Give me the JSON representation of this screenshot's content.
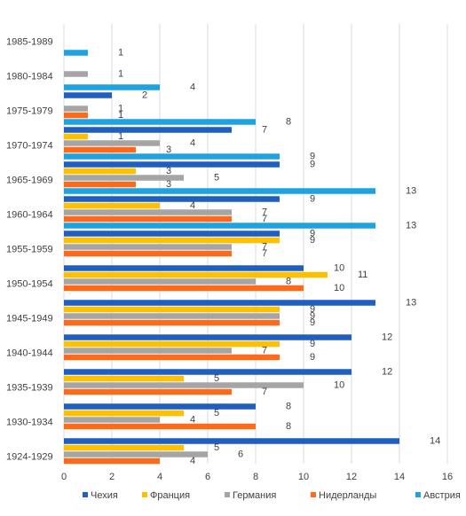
{
  "chart_data": {
    "type": "bar",
    "orientation": "horizontal",
    "categories": [
      "1924-1929",
      "1930-1934",
      "1935-1939",
      "1940-1944",
      "1945-1949",
      "1950-1954",
      "1955-1959",
      "1960-1964",
      "1965-1969",
      "1970-1974",
      "1975-1979",
      "1980-1984",
      "1985-1989"
    ],
    "series": [
      {
        "name": "Чехия",
        "color": "#1f5fbf",
        "values": [
          14,
          8,
          12,
          12,
          13,
          10,
          9,
          9,
          9,
          7,
          2,
          null,
          null
        ]
      },
      {
        "name": "Франция",
        "color": "#ffc000",
        "values": [
          5,
          5,
          5,
          9,
          9,
          11,
          9,
          4,
          3,
          1,
          null,
          null,
          null
        ]
      },
      {
        "name": "Германия",
        "color": "#a5a5a5",
        "values": [
          6,
          4,
          10,
          7,
          9,
          8,
          7,
          7,
          5,
          4,
          1,
          1,
          null
        ]
      },
      {
        "name": "Нидерланды",
        "color": "#ff6a1a",
        "values": [
          4,
          8,
          7,
          9,
          9,
          10,
          7,
          7,
          3,
          3,
          1,
          null,
          null
        ]
      },
      {
        "name": "Австрия",
        "color": "#1fa3e0",
        "values": [
          null,
          null,
          null,
          null,
          null,
          null,
          null,
          13,
          13,
          9,
          8,
          4,
          1
        ]
      }
    ],
    "xlim": [
      0,
      16
    ],
    "xticks": [
      0,
      2,
      4,
      6,
      8,
      10,
      12,
      14,
      16
    ],
    "grid": true,
    "legend_position": "bottom",
    "title": "",
    "xlabel": "",
    "ylabel": ""
  }
}
